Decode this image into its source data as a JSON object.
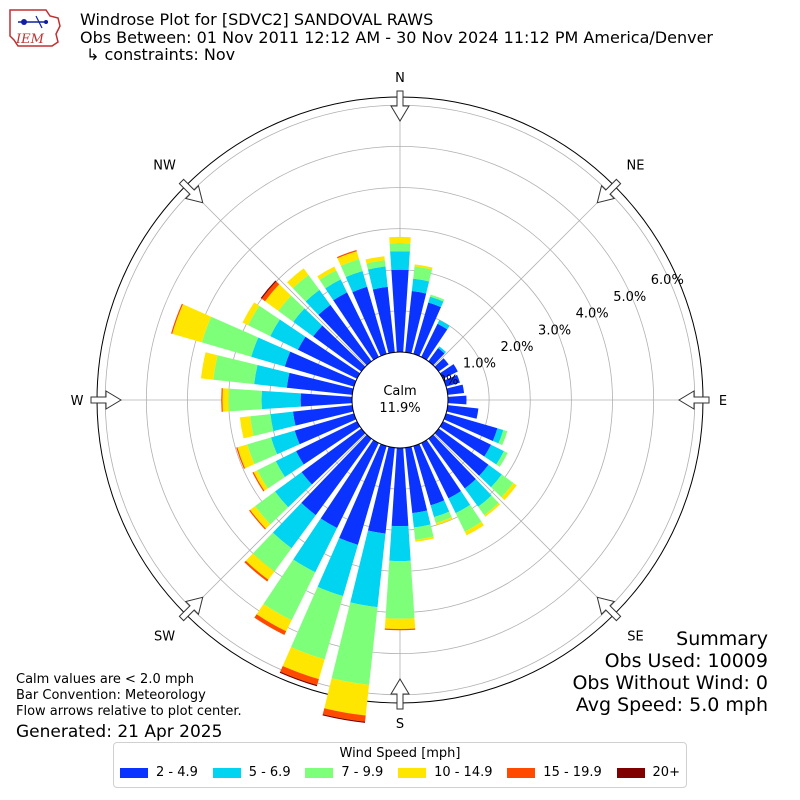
{
  "header": {
    "title": "Windrose Plot for [SDVC2] SANDOVAL RAWS",
    "subtitle": "Obs Between: 01 Nov 2011 12:12 AM - 30 Nov 2024 11:12 PM America/Denver",
    "constraints": "↳ constraints: Nov"
  },
  "logo": {
    "text": "IEM"
  },
  "summary": {
    "title": "Summary",
    "obs_used": "Obs Used: 10009",
    "obs_without_wind": "Obs Without Wind: 0",
    "avg_speed": "Avg Speed: 5.0 mph"
  },
  "notes": {
    "calm_note": "Calm values are < 2.0 mph",
    "bar_convention": "Bar Convention: Meteorology",
    "flow_arrows": "Flow arrows relative to plot center.",
    "generated": "Generated: 21 Apr 2025"
  },
  "legend": {
    "title": "Wind Speed [mph]",
    "items": [
      {
        "label": "2 - 4.9",
        "color": "#0a33ff"
      },
      {
        "label": "5 - 6.9",
        "color": "#00d4f0"
      },
      {
        "label": "7 - 9.9",
        "color": "#7dff7a"
      },
      {
        "label": "10 - 14.9",
        "color": "#ffe600"
      },
      {
        "label": "15 - 19.9",
        "color": "#ff4a00"
      },
      {
        "label": "20+",
        "color": "#800000"
      }
    ]
  },
  "chart_data": {
    "type": "windrose",
    "calm": {
      "label": "Calm",
      "value": "11.9%"
    },
    "radial_ticks": [
      "0.0%",
      "1.0%",
      "2.0%",
      "3.0%",
      "4.0%",
      "5.0%",
      "6.0%"
    ],
    "radial_values": [
      0,
      1,
      2,
      3,
      4,
      5,
      6
    ],
    "rmax": 6.2,
    "directions_labels": [
      "N",
      "NE",
      "E",
      "SE",
      "S",
      "SW",
      "W",
      "NW"
    ],
    "bin_colors": [
      "#0a33ff",
      "#00d4f0",
      "#7dff7a",
      "#ffe600",
      "#ff4a00",
      "#800000"
    ],
    "sector_width_deg": 10,
    "sectors": [
      {
        "dir": 0,
        "values": [
          2.0,
          0.45,
          0.2,
          0.15,
          0,
          0
        ]
      },
      {
        "dir": 10,
        "values": [
          1.5,
          0.3,
          0.3,
          0.05,
          0,
          0
        ]
      },
      {
        "dir": 20,
        "values": [
          1.3,
          0.15,
          0.05,
          0,
          0,
          0
        ]
      },
      {
        "dir": 30,
        "values": [
          0.9,
          0.1,
          0,
          0,
          0,
          0
        ]
      },
      {
        "dir": 40,
        "values": [
          0.4,
          0.05,
          0,
          0,
          0,
          0
        ]
      },
      {
        "dir": 50,
        "values": [
          0.3,
          0,
          0,
          0,
          0,
          0
        ]
      },
      {
        "dir": 60,
        "values": [
          0.4,
          0,
          0,
          0,
          0,
          0
        ]
      },
      {
        "dir": 70,
        "values": [
          0.35,
          0,
          0,
          0,
          0,
          0
        ]
      },
      {
        "dir": 80,
        "values": [
          0.4,
          0,
          0,
          0,
          0,
          0
        ]
      },
      {
        "dir": 90,
        "values": [
          0.45,
          0,
          0,
          0,
          0,
          0
        ]
      },
      {
        "dir": 100,
        "values": [
          0.75,
          0,
          0,
          0,
          0,
          0
        ]
      },
      {
        "dir": 110,
        "values": [
          1.3,
          0.15,
          0.1,
          0,
          0,
          0
        ]
      },
      {
        "dir": 120,
        "values": [
          1.3,
          0.35,
          0.1,
          0,
          0,
          0
        ]
      },
      {
        "dir": 130,
        "values": [
          1.5,
          0.4,
          0.35,
          0.1,
          0,
          0
        ]
      },
      {
        "dir": 140,
        "values": [
          1.5,
          0.55,
          0.25,
          0.05,
          0,
          0
        ]
      },
      {
        "dir": 150,
        "values": [
          1.5,
          0.4,
          0.5,
          0.1,
          0,
          0
        ]
      },
      {
        "dir": 160,
        "values": [
          1.5,
          0.3,
          0.15,
          0.05,
          0,
          0
        ]
      },
      {
        "dir": 170,
        "values": [
          1.6,
          0.35,
          0.3,
          0.05,
          0,
          0
        ]
      },
      {
        "dir": 180,
        "values": [
          1.9,
          0.85,
          1.4,
          0.25,
          0.03,
          0
        ]
      },
      {
        "dir": 190,
        "values": [
          2.1,
          1.8,
          1.9,
          0.75,
          0.15,
          0.03
        ]
      },
      {
        "dir": 200,
        "values": [
          2.5,
          1.3,
          1.6,
          0.5,
          0.15,
          0.03
        ]
      },
      {
        "dir": 210,
        "values": [
          2.3,
          1.2,
          1.3,
          0.3,
          0.1,
          0
        ]
      },
      {
        "dir": 220,
        "values": [
          2.3,
          1.0,
          0.7,
          0.25,
          0.05,
          0
        ]
      },
      {
        "dir": 230,
        "values": [
          1.8,
          0.8,
          0.6,
          0.15,
          0.03,
          0
        ]
      },
      {
        "dir": 240,
        "values": [
          1.65,
          0.55,
          0.5,
          0.1,
          0.03,
          0
        ]
      },
      {
        "dir": 250,
        "values": [
          1.5,
          0.6,
          0.6,
          0.25,
          0.03,
          0
        ]
      },
      {
        "dir": 260,
        "values": [
          1.45,
          0.55,
          0.5,
          0.25,
          0,
          0
        ]
      },
      {
        "dir": 270,
        "values": [
          1.25,
          0.95,
          0.8,
          0.15,
          0.03,
          0
        ]
      },
      {
        "dir": 280,
        "values": [
          1.6,
          0.8,
          1.0,
          0.3,
          0,
          0
        ]
      },
      {
        "dir": 290,
        "values": [
          1.75,
          0.85,
          1.25,
          0.75,
          0.03,
          0
        ]
      },
      {
        "dir": 300,
        "values": [
          1.6,
          0.75,
          0.6,
          0.15,
          0,
          0
        ]
      },
      {
        "dir": 310,
        "values": [
          1.45,
          0.6,
          0.45,
          0.4,
          0.1,
          0.03
        ]
      },
      {
        "dir": 320,
        "values": [
          1.7,
          0.45,
          0.45,
          0.2,
          0,
          0
        ]
      },
      {
        "dir": 330,
        "values": [
          1.75,
          0.35,
          0.25,
          0.1,
          0,
          0
        ]
      },
      {
        "dir": 340,
        "values": [
          1.7,
          0.4,
          0.3,
          0.2,
          0.03,
          0
        ]
      },
      {
        "dir": 350,
        "values": [
          1.6,
          0.5,
          0.15,
          0.1,
          0,
          0
        ]
      }
    ]
  }
}
